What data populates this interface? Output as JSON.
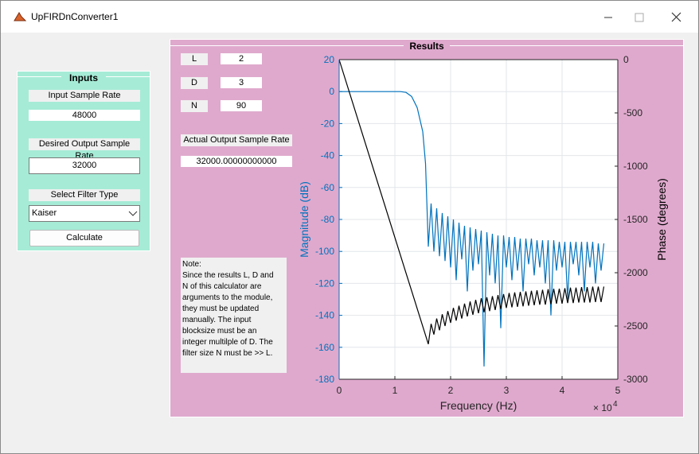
{
  "window": {
    "title": "UpFIRDnConverter1"
  },
  "inputs": {
    "title": "Inputs",
    "input_rate_label": "Input Sample Rate",
    "input_rate": "48000",
    "output_rate_label": "Desired Output Sample Rate",
    "output_rate": "32000",
    "filter_label": "Select Filter Type",
    "filter": "Kaiser",
    "button": "Calculate"
  },
  "results": {
    "title": "Results",
    "L_label": "L",
    "L": "2",
    "D_label": "D",
    "D": "3",
    "N_label": "N",
    "N": "90",
    "actual_rate_label": "Actual Output Sample Rate",
    "actual_rate": "32000.00000000000",
    "note": [
      "Note:",
      "Since the results L, D and",
      "N of this calculator are",
      "arguments to the module,",
      "they must be updated",
      "manually. The input",
      "blocksize must be an",
      "integer multilple of D. The",
      "filter size N must be >> L."
    ]
  },
  "chart_data": {
    "type": "line",
    "x_label": "Frequency (Hz)",
    "y_label": "Magnitude (dB)",
    "y2_label": "Phase (degrees)",
    "x_scale_label": {
      "base": "× 10",
      "exponent": "4"
    },
    "x": [
      0,
      4000,
      8000,
      11000,
      12000,
      13000,
      14000,
      15000,
      15500,
      16000,
      16500,
      17000,
      17500,
      18000,
      18500,
      19000,
      19500,
      20000,
      20500,
      21000,
      21500,
      22000,
      22500,
      23000,
      23500,
      24000,
      24500,
      25000,
      25500,
      26000,
      26500,
      27000,
      27500,
      28000,
      28500,
      29000,
      29500,
      30000,
      30500,
      31000,
      31500,
      32000,
      32500,
      33000,
      33500,
      34000,
      34500,
      35000,
      35500,
      36000,
      36500,
      37000,
      37500,
      38000,
      38500,
      39000,
      39500,
      40000,
      40500,
      41000,
      41500,
      42000,
      42500,
      43000,
      43500,
      44000,
      44500,
      45000,
      45500,
      46000,
      46500,
      47000,
      47500
    ],
    "series": [
      {
        "name": "Magnitude",
        "color": "#0072bd",
        "axis": "y",
        "values": [
          0,
          0,
          0,
          0,
          -0.5,
          -3,
          -10,
          -25,
          -45,
          -97,
          -70,
          -100,
          -73,
          -103,
          -76,
          -106,
          -78,
          -110,
          -80,
          -118,
          -82,
          -105,
          -84,
          -125,
          -85,
          -112,
          -86,
          -108,
          -87,
          -172,
          -88,
          -115,
          -89,
          -120,
          -90,
          -148,
          -90,
          -110,
          -91,
          -118,
          -91,
          -112,
          -92,
          -125,
          -92,
          -108,
          -92,
          -115,
          -93,
          -110,
          -93,
          -120,
          -93,
          -140,
          -93,
          -112,
          -94,
          -110,
          -94,
          -130,
          -94,
          -108,
          -94,
          -115,
          -94,
          -125,
          -94,
          -110,
          -94,
          -120,
          -95,
          -112,
          -95
        ]
      },
      {
        "name": "Phase",
        "color": "#000000",
        "axis": "y2",
        "values": [
          0,
          -668,
          -1335,
          -1836,
          -2003,
          -2169,
          -2336,
          -2503,
          -2586,
          -2670,
          -2480,
          -2580,
          -2430,
          -2540,
          -2390,
          -2500,
          -2360,
          -2470,
          -2330,
          -2450,
          -2310,
          -2430,
          -2290,
          -2410,
          -2270,
          -2395,
          -2255,
          -2380,
          -2240,
          -2370,
          -2230,
          -2360,
          -2220,
          -2350,
          -2210,
          -2340,
          -2200,
          -2330,
          -2190,
          -2325,
          -2185,
          -2320,
          -2180,
          -2315,
          -2175,
          -2310,
          -2170,
          -2305,
          -2165,
          -2300,
          -2160,
          -2300,
          -2155,
          -2295,
          -2150,
          -2290,
          -2150,
          -2290,
          -2145,
          -2285,
          -2140,
          -2285,
          -2140,
          -2280,
          -2135,
          -2280,
          -2135,
          -2280,
          -2130,
          -2275,
          -2130,
          -2275,
          -2130
        ]
      }
    ],
    "xlim": [
      0,
      50000
    ],
    "xticks": [
      {
        "value": 0,
        "label": "0"
      },
      {
        "value": 10000,
        "label": "1"
      },
      {
        "value": 20000,
        "label": "2"
      },
      {
        "value": 30000,
        "label": "3"
      },
      {
        "value": 40000,
        "label": "4"
      },
      {
        "value": 50000,
        "label": "5"
      }
    ],
    "ylim": [
      -180,
      20
    ],
    "yticks": [
      20,
      0,
      -20,
      -40,
      -60,
      -80,
      -100,
      -120,
      -140,
      -160,
      -180
    ],
    "y2lim": [
      -3000,
      0
    ],
    "y2ticks": [
      0,
      -500,
      -1000,
      -1500,
      -2000,
      -2500,
      -3000
    ],
    "grid": true
  }
}
